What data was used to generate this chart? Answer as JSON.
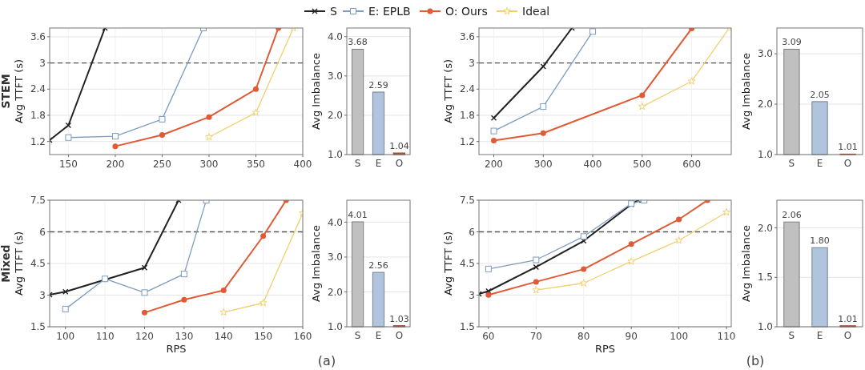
{
  "chart_data": [
    {
      "type": "line",
      "xlim": [
        130,
        400
      ],
      "ylim": [
        0.9,
        3.8
      ],
      "xticks": [
        150,
        200,
        250,
        300,
        350,
        400
      ],
      "yticks": [
        1.2,
        1.8,
        2.4,
        3,
        3.6
      ],
      "ylabel": "Avg TTFT (s)",
      "annotations": [
        "STEM"
      ],
      "grid": true,
      "legend": "top",
      "line_style": "solid",
      "ref_lines": [
        {
          "axis": "y",
          "value": 3,
          "color": "#555555",
          "line_style": "dashed"
        }
      ],
      "series": [
        {
          "name": "S",
          "color": "#222222",
          "marker": "cross",
          "x": [
            130,
            150,
            189
          ],
          "values": [
            1.23,
            1.57,
            3.8
          ]
        },
        {
          "name": "E: EPLB",
          "color": "#7f9cc0",
          "marker": "square",
          "x": [
            150,
            200,
            250,
            294
          ],
          "values": [
            1.29,
            1.32,
            1.71,
            3.8
          ]
        },
        {
          "name": "O: Ours",
          "color": "#e05a35",
          "marker": "circle",
          "x": [
            200,
            250,
            300,
            350,
            374
          ],
          "values": [
            1.09,
            1.35,
            1.76,
            2.4,
            3.8
          ]
        },
        {
          "name": "Ideal",
          "color": "#f0d070",
          "marker": "star",
          "x": [
            300,
            350,
            390
          ],
          "values": [
            1.3,
            1.86,
            3.8
          ]
        }
      ]
    },
    {
      "type": "bar",
      "categories": [
        "S",
        "E",
        "O"
      ],
      "values": [
        3.68,
        2.59,
        1.04
      ],
      "colors": [
        "#c0c0c0",
        "#b0c4de",
        "#e05a35"
      ],
      "value_labels": [
        "3.68",
        "2.59",
        "1.04"
      ],
      "ylim": [
        1,
        4.22
      ],
      "yticks": [
        {
          "value": 1,
          "label": "1.0"
        },
        {
          "value": 2,
          "label": "2.0"
        },
        {
          "value": 3,
          "label": "3.0"
        },
        {
          "value": 4,
          "label": "4.0"
        }
      ],
      "ylabel": "Avg Imbalance",
      "grid": "y"
    },
    {
      "type": "line",
      "xlim": [
        170,
        680
      ],
      "ylim": [
        0.9,
        3.8
      ],
      "xticks": [
        200,
        300,
        400,
        500,
        600
      ],
      "yticks": [
        1.2,
        1.8,
        2.4,
        3,
        3.6
      ],
      "ylabel": "Avg TTFT (s)",
      "grid": true,
      "line_style": "solid",
      "ref_lines": [
        {
          "axis": "y",
          "value": 3,
          "color": "#555555",
          "line_style": "dashed"
        }
      ],
      "series": [
        {
          "color": "#222222",
          "marker": "cross",
          "x": [
            200,
            300,
            358
          ],
          "values": [
            1.74,
            2.92,
            3.8
          ]
        },
        {
          "color": "#7f9cc0",
          "marker": "square",
          "x": [
            200,
            300,
            400
          ],
          "values": [
            1.44,
            2.0,
            3.72
          ]
        },
        {
          "color": "#e05a35",
          "marker": "circle",
          "x": [
            200,
            300,
            500,
            600
          ],
          "values": [
            1.22,
            1.39,
            2.26,
            3.79
          ]
        },
        {
          "color": "#f0d070",
          "marker": "star",
          "x": [
            500,
            600,
            676
          ],
          "values": [
            2.0,
            2.58,
            3.8
          ]
        }
      ]
    },
    {
      "type": "bar",
      "categories": [
        "S",
        "E",
        "O"
      ],
      "values": [
        3.09,
        2.05,
        1.01
      ],
      "colors": [
        "#c0c0c0",
        "#b0c4de",
        "#e05a35"
      ],
      "value_labels": [
        "3.09",
        "2.05",
        "1.01"
      ],
      "ylim": [
        1,
        3.51
      ],
      "yticks": [
        {
          "value": 1,
          "label": "1.0"
        },
        {
          "value": 2,
          "label": "2.0"
        },
        {
          "value": 3,
          "label": "3.0"
        }
      ],
      "ylabel": "Avg Imbalance",
      "grid": "y"
    },
    {
      "type": "line",
      "xlim": [
        96,
        160
      ],
      "ylim": [
        1.5,
        7.5
      ],
      "xticks": [
        100,
        110,
        120,
        130,
        140,
        150,
        160
      ],
      "yticks": [
        1.5,
        3,
        4.5,
        6,
        7.5
      ],
      "xlabel": "RPS",
      "ylabel": "Avg TTFT (s)",
      "annotations": [
        "Mixed",
        "(a)"
      ],
      "grid": true,
      "line_style": "solid",
      "ref_lines": [
        {
          "axis": "y",
          "value": 6,
          "color": "#555555",
          "line_style": "dashed"
        }
      ],
      "series": [
        {
          "color": "#222222",
          "marker": "cross",
          "x": [
            96,
            100,
            120,
            128.6
          ],
          "values": [
            3.02,
            3.16,
            4.3,
            7.5
          ]
        },
        {
          "color": "#7f9cc0",
          "marker": "square",
          "x": [
            100,
            110,
            120,
            130,
            135.6
          ],
          "values": [
            2.34,
            3.77,
            3.12,
            4.0,
            7.5
          ]
        },
        {
          "color": "#e05a35",
          "marker": "circle",
          "x": [
            120,
            130,
            140,
            150,
            155.8
          ],
          "values": [
            2.17,
            2.78,
            3.23,
            5.8,
            7.5
          ]
        },
        {
          "color": "#f0d070",
          "marker": "star",
          "x": [
            140,
            150,
            160
          ],
          "values": [
            2.19,
            2.63,
            6.89
          ]
        }
      ]
    },
    {
      "type": "bar",
      "categories": [
        "S",
        "E",
        "O"
      ],
      "values": [
        4.01,
        2.56,
        1.03
      ],
      "colors": [
        "#c0c0c0",
        "#b0c4de",
        "#e05a35"
      ],
      "value_labels": [
        "4.01",
        "2.56",
        "1.03"
      ],
      "ylim": [
        1,
        4.63
      ],
      "yticks": [
        {
          "value": 1,
          "label": "1.0"
        },
        {
          "value": 2,
          "label": "2.0"
        },
        {
          "value": 3,
          "label": "3.0"
        },
        {
          "value": 4,
          "label": "4.0"
        }
      ],
      "ylabel": "Avg Imbalance",
      "grid": "y"
    },
    {
      "type": "line",
      "xlim": [
        58,
        111
      ],
      "ylim": [
        1.5,
        7.5
      ],
      "xticks": [
        60,
        70,
        80,
        90,
        100,
        110
      ],
      "yticks": [
        1.5,
        3,
        4.5,
        6,
        7.5
      ],
      "xlabel": "RPS",
      "ylabel": "Avg TTFT (s)",
      "annotations": [
        "(b)"
      ],
      "grid": true,
      "line_style": "solid",
      "ref_lines": [
        {
          "axis": "y",
          "value": 6,
          "color": "#555555",
          "line_style": "dashed"
        }
      ],
      "series": [
        {
          "color": "#222222",
          "marker": "cross",
          "x": [
            58,
            60,
            70,
            80,
            90,
            91.4
          ],
          "values": [
            3.06,
            3.19,
            4.33,
            5.57,
            7.3,
            7.5
          ]
        },
        {
          "color": "#7f9cc0",
          "marker": "square",
          "x": [
            60,
            70,
            80,
            90,
            92.7
          ],
          "values": [
            4.24,
            4.67,
            5.78,
            7.34,
            7.5
          ]
        },
        {
          "color": "#e05a35",
          "marker": "circle",
          "x": [
            60,
            70,
            80,
            90,
            100,
            106
          ],
          "values": [
            3.01,
            3.63,
            4.23,
            5.42,
            6.59,
            7.5
          ]
        },
        {
          "color": "#f0d070",
          "marker": "star",
          "x": [
            70,
            80,
            90,
            100,
            110
          ],
          "values": [
            3.24,
            3.57,
            4.6,
            5.59,
            6.93
          ]
        }
      ]
    },
    {
      "type": "bar",
      "categories": [
        "S",
        "E",
        "O"
      ],
      "values": [
        2.06,
        1.8,
        1.01
      ],
      "colors": [
        "#c0c0c0",
        "#b0c4de",
        "#e05a35"
      ],
      "value_labels": [
        "2.06",
        "1.80",
        "1.01"
      ],
      "ylim": [
        1,
        2.28
      ],
      "yticks": [
        {
          "value": 1,
          "label": "1.0"
        },
        {
          "value": 1.5,
          "label": "1.5"
        },
        {
          "value": 2,
          "label": "2.0"
        }
      ],
      "ylabel": "Avg Imbalance",
      "grid": "y"
    }
  ]
}
